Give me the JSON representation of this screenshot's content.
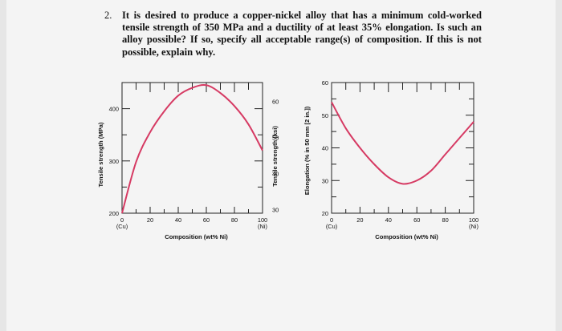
{
  "question": {
    "number": "2.",
    "text": "It is desired to produce a copper-nickel alloy that has a minimum cold-worked tensile strength of 350 MPa and a ductility of at least 35% elongation. Is such an alloy possible? If so, specify all acceptable range(s) of composition. If this is not possible, explain why."
  },
  "chart_data": [
    {
      "type": "line",
      "x": [
        0,
        10,
        20,
        30,
        40,
        50,
        60,
        70,
        80,
        90,
        100
      ],
      "series": [
        {
          "values": [
            200,
            298,
            355,
            395,
            425,
            440,
            445,
            430,
            405,
            370,
            320
          ],
          "color": "#d63a63"
        }
      ],
      "xlim": [
        0,
        100
      ],
      "ylim": [
        200,
        450
      ],
      "xticks": [
        "0",
        "20",
        "40",
        "60",
        "80",
        "100"
      ],
      "xtick_sub": {
        "0": "(Cu)",
        "100": "(Ni)"
      },
      "xlabel": "Composition (wt% Ni)",
      "ylabel": "Tensile strength (MPa)",
      "yticks": [
        "200",
        "300",
        "400"
      ],
      "ylabel_right": "Tensile strength (ksi)",
      "yticks_right": [
        "30",
        "40",
        "50",
        "60"
      ]
    },
    {
      "type": "line",
      "x": [
        0,
        10,
        20,
        30,
        40,
        50,
        60,
        70,
        80,
        90,
        100
      ],
      "series": [
        {
          "values": [
            54,
            46,
            40,
            35,
            31,
            29,
            30,
            33,
            38,
            43,
            48
          ],
          "color": "#d63a63"
        }
      ],
      "xlim": [
        0,
        100
      ],
      "ylim": [
        20,
        60
      ],
      "xticks": [
        "0",
        "20",
        "40",
        "60",
        "80",
        "100"
      ],
      "xtick_sub": {
        "0": "(Cu)",
        "100": "(Ni)"
      },
      "xlabel": "Composition (wt% Ni)",
      "ylabel": "Elongation (% in 50 mm [2 in.])",
      "yticks": [
        "20",
        "30",
        "40",
        "50",
        "60"
      ]
    }
  ]
}
